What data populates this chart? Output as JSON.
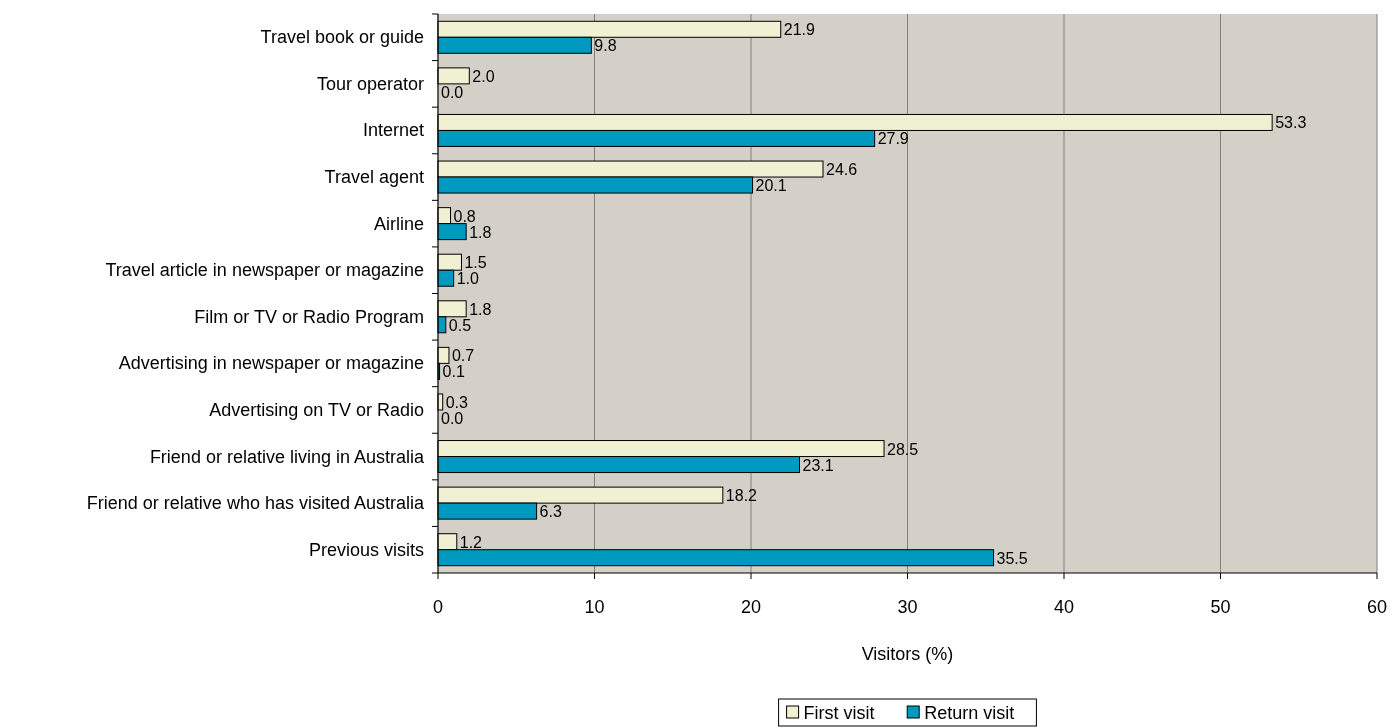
{
  "chart_data": {
    "type": "bar",
    "orientation": "horizontal",
    "xlabel": "Visitors (%)",
    "categories": [
      "Travel book or guide",
      "Tour operator",
      "Internet",
      "Travel agent",
      "Airline",
      "Travel article in newspaper or magazine",
      "Film or TV or Radio Program",
      "Advertising in newspaper or magazine",
      "Advertising on TV or Radio",
      "Friend or relative living in Australia",
      "Friend or relative who has visited Australia",
      "Previous visits"
    ],
    "series": [
      {
        "name": "First visit",
        "color": "#f0f0d2",
        "values": [
          21.9,
          2.0,
          53.3,
          24.6,
          0.8,
          1.5,
          1.8,
          0.7,
          0.3,
          28.5,
          18.2,
          1.2
        ],
        "value_labels": [
          "21.9",
          "2.0",
          "53.3",
          "24.6",
          "0.8",
          "1.5",
          "1.8",
          "0.7",
          "0.3",
          "28.5",
          "18.2",
          "1.2"
        ]
      },
      {
        "name": "Return visit",
        "color": "#0099c0",
        "values": [
          9.8,
          0.0,
          27.9,
          20.1,
          1.8,
          1.0,
          0.5,
          0.1,
          0.0,
          23.1,
          6.3,
          35.5
        ],
        "value_labels": [
          "9.8",
          "0.0",
          "27.9",
          "20.1",
          "1.8",
          "1.0",
          "0.5",
          "0.1",
          "0.0",
          "23.1",
          "6.3",
          "35.5"
        ]
      }
    ],
    "xlim": [
      0,
      60
    ],
    "xticks": [
      0,
      10,
      20,
      30,
      40,
      50,
      60
    ],
    "grid": "x",
    "legend": "bottom"
  }
}
